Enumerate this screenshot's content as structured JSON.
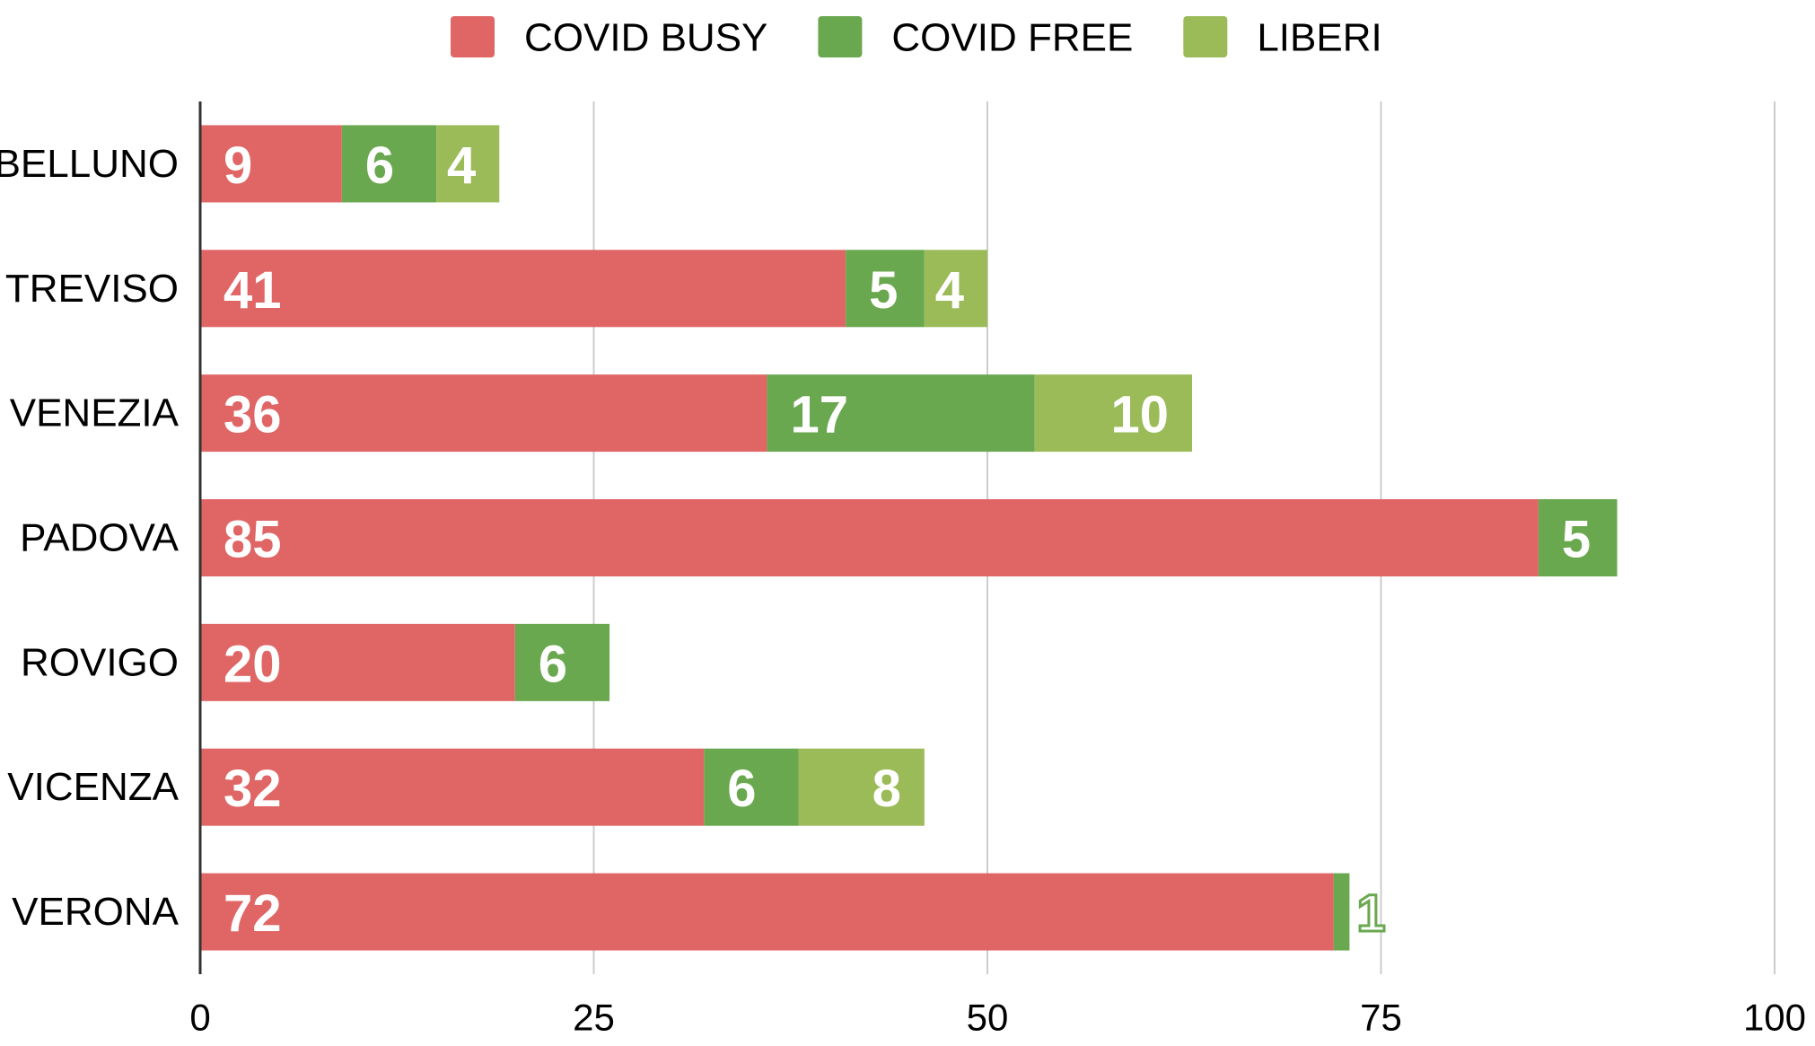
{
  "chart_data": {
    "type": "stacked_bar_horizontal",
    "categories": [
      "BELLUNO",
      "TREVISO",
      "VENEZIA",
      "PADOVA",
      "ROVIGO",
      "VICENZA",
      "VERONA"
    ],
    "series": [
      {
        "name": "COVID BUSY",
        "color": "#e06666",
        "values": [
          9,
          41,
          36,
          85,
          20,
          32,
          72
        ]
      },
      {
        "name": "COVID FREE",
        "color": "#6aa84f",
        "values": [
          6,
          5,
          17,
          5,
          6,
          6,
          1
        ]
      },
      {
        "name": "LIBERI",
        "color": "#9bbb59",
        "values": [
          4,
          4,
          10,
          null,
          null,
          8,
          null
        ]
      }
    ],
    "xlim": [
      0,
      100
    ],
    "xticks": [
      0,
      25,
      50,
      75,
      100
    ],
    "grid": true,
    "legend": "top"
  }
}
